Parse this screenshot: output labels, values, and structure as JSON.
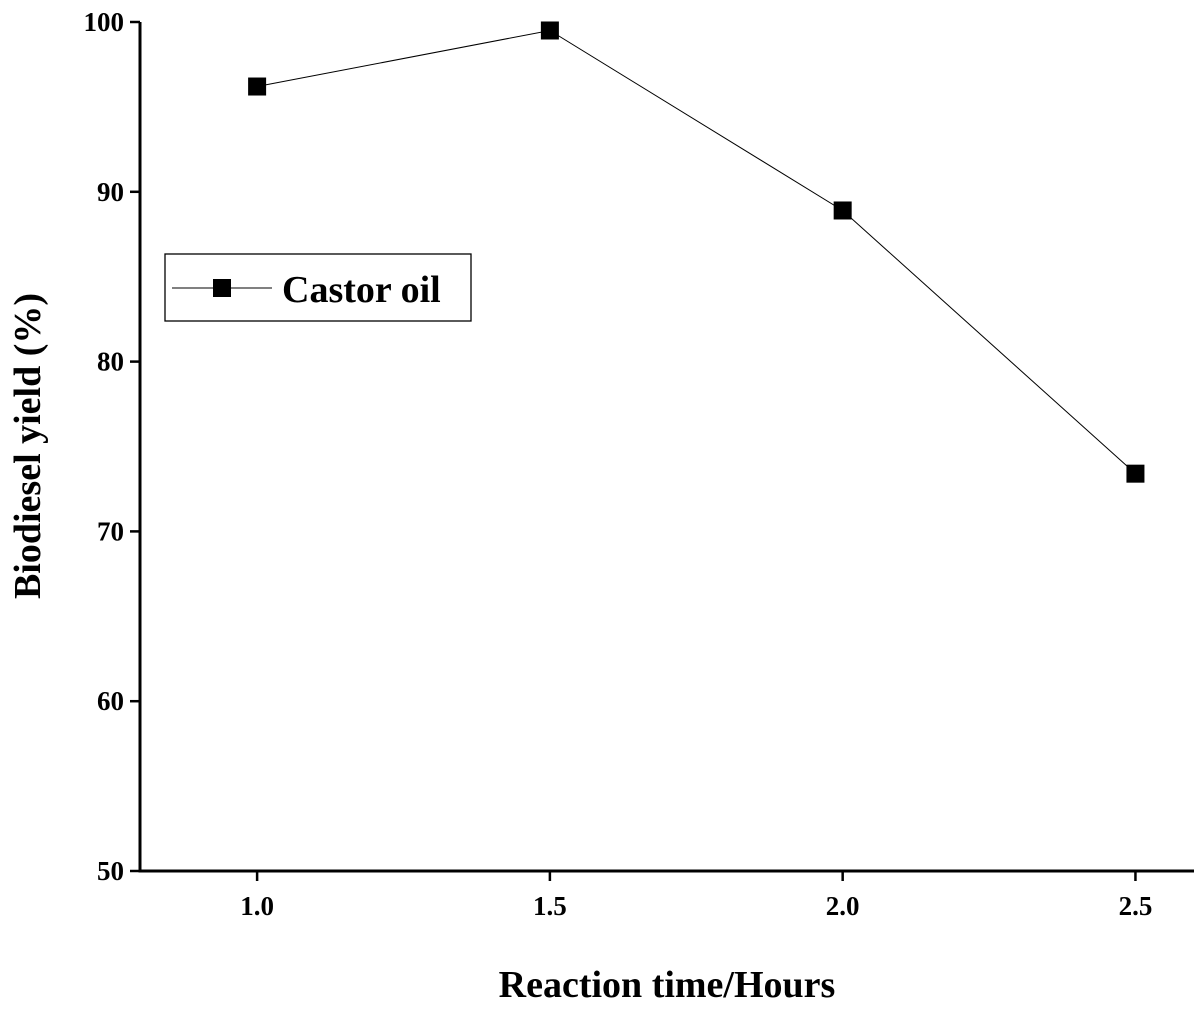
{
  "chart_data": {
    "type": "line",
    "title": "",
    "xlabel": "Reaction time/Hours",
    "ylabel": "Biodiesel yield (%)",
    "x": [
      1.0,
      1.5,
      2.0,
      2.5
    ],
    "xticks": [
      "1.0",
      "1.5",
      "2.0",
      "2.5"
    ],
    "yticks": [
      "50",
      "60",
      "70",
      "80",
      "90",
      "100"
    ],
    "xlim": [
      0.8,
      2.6
    ],
    "ylim": [
      50,
      100
    ],
    "grid": false,
    "legend_position": "upper-left",
    "series": [
      {
        "name": "Castor oil",
        "values": [
          96.2,
          99.5,
          88.9,
          73.4
        ],
        "color": "#000000",
        "marker": "square"
      }
    ]
  }
}
